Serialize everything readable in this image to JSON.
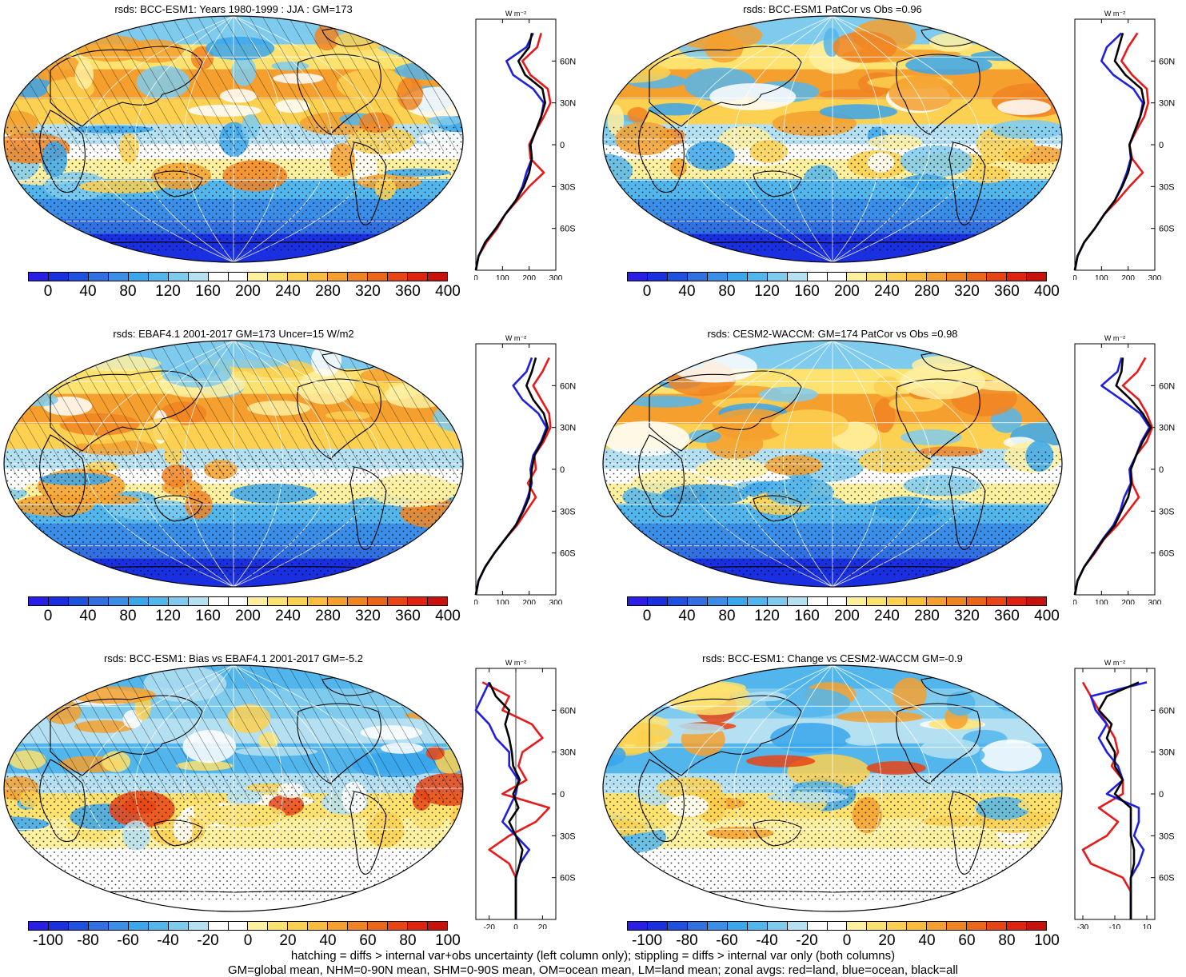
{
  "panels": [
    {
      "id": "p1",
      "title": "rsds: BCC-ESM1: Years 1980-1999 : JJA : GM=173",
      "scale": "abs",
      "hatch": true,
      "zonal_xticks": [
        "0",
        "100",
        "200",
        "300"
      ],
      "zonal_unit": "W m⁻²"
    },
    {
      "id": "p2",
      "title": "rsds: BCC-ESM1 PatCor vs Obs =0.96",
      "scale": "abs",
      "hatch": false,
      "zonal_xticks": [
        "0",
        "100",
        "200",
        "300"
      ],
      "zonal_unit": "W m⁻²"
    },
    {
      "id": "p3",
      "title": "rsds: EBAF4.1 2001-2017 GM=173 Uncer=15 W/m2",
      "scale": "abs",
      "hatch": true,
      "zonal_xticks": [
        "0",
        "100",
        "200",
        "300"
      ],
      "zonal_unit": "W m⁻²"
    },
    {
      "id": "p4",
      "title": "rsds: CESM2-WACCM: GM=174 PatCor vs Obs =0.98",
      "scale": "abs",
      "hatch": false,
      "zonal_xticks": [
        "0",
        "100",
        "200",
        "300"
      ],
      "zonal_unit": "W m⁻²"
    },
    {
      "id": "p5",
      "title": "rsds: BCC-ESM1: Bias vs EBAF4.1 2001-2017 GM=-5.2",
      "scale": "diff",
      "hatch": true,
      "zonal_xticks": [
        "-20",
        "0",
        "20"
      ],
      "zonal_unit": "W m⁻²"
    },
    {
      "id": "p6",
      "title": "rsds: BCC-ESM1: Change vs CESM2-WACCM GM=-0.9",
      "scale": "diff",
      "hatch": false,
      "zonal_xticks": [
        "-30",
        "-10",
        "10"
      ],
      "zonal_unit": "W m⁻²"
    }
  ],
  "lat_labels": [
    "60N",
    "30N",
    "0",
    "30S",
    "60S"
  ],
  "colorbars": {
    "abs": {
      "labels": [
        "0",
        "40",
        "80",
        "120",
        "160",
        "200",
        "240",
        "280",
        "320",
        "360",
        "400"
      ]
    },
    "diff": {
      "labels": [
        "-100",
        "-80",
        "-60",
        "-40",
        "-20",
        "0",
        "20",
        "40",
        "60",
        "80",
        "100"
      ]
    }
  },
  "palette": [
    "#2a1ee6",
    "#1a2fe0",
    "#2050e0",
    "#3070e0",
    "#3a8ee8",
    "#3aa6ec",
    "#52b6ec",
    "#7ecbee",
    "#b4e0f2",
    "#ffffff",
    "#ffffff",
    "#fff0a0",
    "#fde270",
    "#fcd050",
    "#f9bc3c",
    "#f5a02e",
    "#f18422",
    "#ec661a",
    "#e84414",
    "#e02210",
    "#c8100c"
  ],
  "zonal_colors": {
    "land": "#e8191a",
    "ocean": "#1f1fe0",
    "all": "#000000"
  },
  "footer": {
    "line1": "hatching = diffs > internal var+obs uncertainty (left column only); stippling = diffs > internal var only (both columns)",
    "line2": "GM=global mean, NHM=0-90N mean, SHM=0-90S mean, OM=ocean mean, LM=land mean; zonal avgs: red=land, blue=ocean, black=all"
  },
  "chart_data": [
    {
      "type": "line",
      "title": "rsds: BCC-ESM1: Years 1980-1999 : JJA : GM=173",
      "ylabel": "",
      "xlim": [
        0,
        300
      ],
      "y_lat": [
        80,
        70,
        60,
        50,
        40,
        30,
        20,
        10,
        0,
        -10,
        -20,
        -30,
        -40,
        -50,
        -60,
        -70,
        -80,
        -90
      ],
      "series": [
        {
          "name": "land",
          "values": [
            245,
            230,
            175,
            205,
            270,
            280,
            255,
            225,
            200,
            205,
            255,
            200,
            155,
            110,
            80,
            40,
            10,
            0
          ]
        },
        {
          "name": "ocean",
          "values": [
            215,
            190,
            115,
            140,
            215,
            255,
            245,
            225,
            205,
            210,
            190,
            175,
            150,
            110,
            75,
            35,
            10,
            0
          ]
        },
        {
          "name": "all",
          "values": [
            210,
            200,
            160,
            185,
            250,
            260,
            245,
            225,
            205,
            210,
            200,
            180,
            150,
            110,
            75,
            35,
            10,
            0
          ]
        }
      ]
    },
    {
      "type": "line",
      "title": "rsds: BCC-ESM1 PatCor vs Obs =0.96",
      "xlim": [
        0,
        300
      ],
      "y_lat": [
        80,
        70,
        60,
        50,
        40,
        30,
        20,
        10,
        0,
        -10,
        -20,
        -30,
        -40,
        -50,
        -60,
        -70,
        -80,
        -90
      ],
      "series": [
        {
          "name": "land",
          "values": [
            235,
            200,
            175,
            215,
            270,
            275,
            260,
            230,
            205,
            215,
            255,
            205,
            160,
            110,
            75,
            35,
            10,
            0
          ]
        },
        {
          "name": "ocean",
          "values": [
            175,
            120,
            100,
            145,
            220,
            255,
            245,
            225,
            205,
            210,
            195,
            175,
            150,
            110,
            75,
            35,
            10,
            0
          ]
        },
        {
          "name": "all",
          "values": [
            180,
            165,
            150,
            190,
            250,
            260,
            245,
            225,
            205,
            212,
            200,
            178,
            150,
            110,
            75,
            35,
            10,
            0
          ]
        }
      ]
    },
    {
      "type": "line",
      "title": "rsds: EBAF4.1 2001-2017 GM=173 Uncer=15 W/m2",
      "xlim": [
        0,
        300
      ],
      "y_lat": [
        80,
        70,
        60,
        50,
        40,
        30,
        20,
        10,
        0,
        -10,
        -20,
        -30,
        -40,
        -50,
        -60,
        -70,
        -80,
        -90
      ],
      "series": [
        {
          "name": "land",
          "values": [
            275,
            250,
            215,
            245,
            275,
            280,
            255,
            220,
            225,
            195,
            225,
            190,
            155,
            110,
            70,
            35,
            10,
            0
          ]
        },
        {
          "name": "ocean",
          "values": [
            210,
            190,
            140,
            175,
            235,
            265,
            245,
            215,
            205,
            210,
            195,
            175,
            150,
            110,
            70,
            35,
            10,
            0
          ]
        },
        {
          "name": "all",
          "values": [
            225,
            210,
            190,
            215,
            255,
            270,
            248,
            220,
            210,
            205,
            200,
            178,
            150,
            110,
            70,
            35,
            10,
            0
          ]
        }
      ]
    },
    {
      "type": "line",
      "title": "rsds: CESM2-WACCM: GM=174 PatCor vs Obs =0.98",
      "xlim": [
        0,
        300
      ],
      "y_lat": [
        80,
        70,
        60,
        50,
        40,
        30,
        20,
        10,
        0,
        -10,
        -20,
        -30,
        -40,
        -50,
        -60,
        -70,
        -80,
        -90
      ],
      "series": [
        {
          "name": "land",
          "values": [
            265,
            235,
            180,
            240,
            270,
            290,
            270,
            230,
            210,
            215,
            240,
            200,
            160,
            110,
            75,
            35,
            10,
            0
          ]
        },
        {
          "name": "ocean",
          "values": [
            175,
            160,
            100,
            175,
            245,
            280,
            250,
            230,
            205,
            210,
            185,
            170,
            145,
            105,
            70,
            35,
            10,
            0
          ]
        },
        {
          "name": "all",
          "values": [
            180,
            175,
            155,
            210,
            255,
            285,
            255,
            230,
            210,
            212,
            200,
            175,
            150,
            108,
            72,
            35,
            10,
            0
          ]
        }
      ]
    },
    {
      "type": "line",
      "title": "rsds: BCC-ESM1: Bias vs EBAF4.1 2001-2017 GM=-5.2",
      "xlim": [
        -30,
        30
      ],
      "y_lat": [
        80,
        70,
        60,
        50,
        40,
        30,
        20,
        10,
        0,
        -10,
        -20,
        -30,
        -40,
        -50,
        -60,
        -70,
        -80,
        -90
      ],
      "series": [
        {
          "name": "land",
          "values": [
            -25,
            -5,
            -10,
            12,
            20,
            5,
            2,
            8,
            -10,
            25,
            15,
            -5,
            -20,
            -5,
            0,
            0,
            0,
            0
          ]
        },
        {
          "name": "ocean",
          "values": [
            -20,
            -25,
            -30,
            -20,
            -15,
            -5,
            -5,
            2,
            0,
            -5,
            -10,
            0,
            10,
            3,
            0,
            0,
            0,
            0
          ]
        },
        {
          "name": "all",
          "values": [
            -20,
            -15,
            -5,
            -8,
            -5,
            -3,
            -2,
            3,
            -2,
            2,
            -5,
            0,
            5,
            3,
            0,
            0,
            0,
            0
          ]
        }
      ]
    },
    {
      "type": "line",
      "title": "rsds: BCC-ESM1: Change vs CESM2-WACCM GM=-0.9",
      "xlim": [
        -35,
        15
      ],
      "y_lat": [
        80,
        70,
        60,
        50,
        40,
        30,
        20,
        10,
        0,
        -10,
        -20,
        -30,
        -40,
        -50,
        -60,
        -70,
        -80,
        -90
      ],
      "series": [
        {
          "name": "land",
          "values": [
            -30,
            -25,
            -20,
            -15,
            -10,
            -8,
            -12,
            -5,
            -5,
            -20,
            -8,
            -15,
            -30,
            -25,
            -5,
            0,
            0,
            0
          ]
        },
        {
          "name": "ocean",
          "values": [
            10,
            -25,
            -22,
            -15,
            -20,
            -15,
            -8,
            -5,
            -15,
            5,
            5,
            2,
            8,
            5,
            0,
            0,
            0,
            0
          ]
        },
        {
          "name": "all",
          "values": [
            5,
            -15,
            -20,
            -12,
            -15,
            -10,
            -10,
            -5,
            -10,
            0,
            0,
            0,
            2,
            2,
            0,
            0,
            0,
            0
          ]
        }
      ]
    }
  ]
}
